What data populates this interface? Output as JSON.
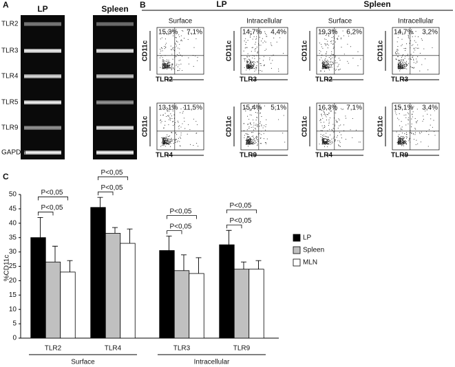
{
  "panel_labels": [
    "A",
    "B",
    "C"
  ],
  "gel": {
    "lanes": [
      "LP",
      "Spleen"
    ],
    "rows": [
      "TLR2",
      "TLR3",
      "TLR4",
      "TLR5",
      "TLR9",
      "GAPDH"
    ]
  },
  "flow": {
    "groups": [
      {
        "title": "LP",
        "columns": [
          "Surface",
          "Intracellular"
        ],
        "plots": [
          {
            "y_label": "CD11c",
            "x_label": "TLR2",
            "upper_left": "15,3%",
            "upper_right": "7,1%"
          },
          {
            "y_label": "CD11c",
            "x_label": "TLR3",
            "upper_left": "14,7%",
            "upper_right": "4,4%"
          },
          {
            "y_label": "CD11c",
            "x_label": "TLR4",
            "upper_left": "13,1%",
            "upper_right": "11,5%"
          },
          {
            "y_label": "CD11c",
            "x_label": "TLR9",
            "upper_left": "15,4%",
            "upper_right": "5,1%"
          }
        ]
      },
      {
        "title": "Spleen",
        "columns": [
          "Surface",
          "Intracellular"
        ],
        "plots": [
          {
            "y_label": "CD11c",
            "x_label": "TLR2",
            "upper_left": "19,3%",
            "upper_right": "6,2%"
          },
          {
            "y_label": "CD11c",
            "x_label": "TLR3",
            "upper_left": "14,7%",
            "upper_right": "3,2%"
          },
          {
            "y_label": "CD11c",
            "x_label": "TLR4",
            "upper_left": "16,3%",
            "upper_right": "7,1%"
          },
          {
            "y_label": "CD11c",
            "x_label": "TLR9",
            "upper_left": "15,1%",
            "upper_right": "3,4%"
          }
        ]
      }
    ]
  },
  "chart_data": {
    "type": "bar",
    "y_label": "%CD11c",
    "categories": [
      "TLR2",
      "TLR4",
      "TLR3",
      "TLR9"
    ],
    "category_groups": [
      "Surface",
      "Intracellular"
    ],
    "series": [
      {
        "name": "LP",
        "color": "#000000",
        "values": [
          35,
          45.5,
          30.5,
          32.5
        ],
        "errors": [
          7,
          3.5,
          5,
          5
        ]
      },
      {
        "name": "Spleen",
        "color": "#c0c0c0",
        "values": [
          26.5,
          36.5,
          23.5,
          24
        ],
        "errors": [
          5.5,
          2,
          5.5,
          2.5
        ]
      },
      {
        "name": "MLN",
        "color": "#ffffff",
        "values": [
          23,
          33,
          22.5,
          24
        ],
        "errors": [
          4,
          5,
          5.5,
          3
        ]
      }
    ],
    "annotations": [
      "P<0,05",
      "P<0,05",
      "P<0,05",
      "P<0,05",
      "P<0,05",
      "P<0,05",
      "P<0,05",
      "P<0,05"
    ],
    "ylim": [
      0,
      50
    ],
    "yticks": [
      0,
      5,
      10,
      15,
      20,
      25,
      30,
      35,
      40,
      45,
      50
    ],
    "legend": "right"
  }
}
